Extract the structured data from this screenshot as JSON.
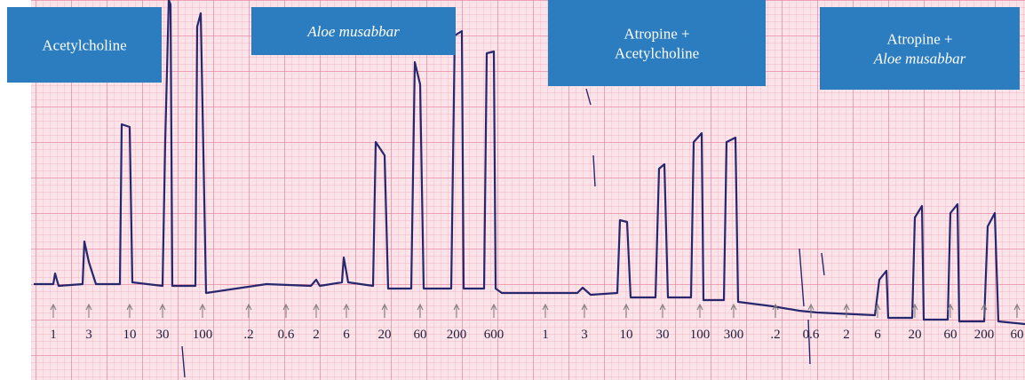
{
  "panels": [
    {
      "lines": [
        "Acetylcholine"
      ]
    },
    {
      "lines": [
        "Aloe musabbar"
      ]
    },
    {
      "lines": [
        "Atropine +",
        "Acetylcholine"
      ]
    },
    {
      "lines": [
        "Atropine +",
        "Aloe musabbar"
      ]
    }
  ],
  "doses": [
    "1",
    "3",
    "10",
    "30",
    "100",
    ".2",
    "0.6",
    "2",
    "6",
    "20",
    "60",
    "200",
    "600",
    "1",
    "3",
    "10",
    "30",
    "100",
    "300",
    ".2",
    "0.6",
    "2",
    "6",
    "20",
    "60",
    "200",
    "60"
  ]
}
